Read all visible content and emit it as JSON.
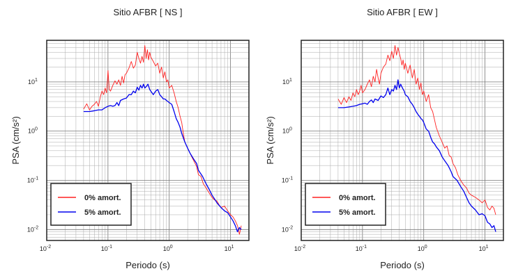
{
  "chart_data": [
    {
      "type": "line",
      "title": "Sitio AFBR [ NS ]",
      "xlabel": "Periodo (s)",
      "ylabel": "PSA (cm/s²)",
      "xscale": "log",
      "yscale": "log",
      "xlim": [
        0.01,
        20
      ],
      "ylim": [
        0.006,
        70
      ],
      "grid": true,
      "legend": "lower-left",
      "x_ticks": [
        {
          "value": 0.01,
          "base": "10",
          "exp": "-2"
        },
        {
          "value": 0.1,
          "base": "10",
          "exp": "-1"
        },
        {
          "value": 1,
          "base": "10",
          "exp": "0"
        },
        {
          "value": 10,
          "base": "10",
          "exp": "1"
        }
      ],
      "y_ticks": [
        {
          "value": 0.01,
          "base": "10",
          "exp": "-2"
        },
        {
          "value": 0.1,
          "base": "10",
          "exp": "-1"
        },
        {
          "value": 1,
          "base": "10",
          "exp": "0"
        },
        {
          "value": 10,
          "base": "10",
          "exp": "1"
        }
      ],
      "series": [
        {
          "name": "0% amort.",
          "color": "#ff2020",
          "x": [
            0.04,
            0.045,
            0.05,
            0.055,
            0.06,
            0.065,
            0.07,
            0.075,
            0.08,
            0.085,
            0.09,
            0.095,
            0.1,
            0.105,
            0.11,
            0.12,
            0.13,
            0.14,
            0.15,
            0.16,
            0.17,
            0.18,
            0.19,
            0.2,
            0.22,
            0.24,
            0.26,
            0.28,
            0.3,
            0.32,
            0.34,
            0.36,
            0.38,
            0.4,
            0.42,
            0.44,
            0.46,
            0.48,
            0.5,
            0.55,
            0.6,
            0.65,
            0.7,
            0.75,
            0.8,
            0.85,
            0.9,
            0.95,
            1.0,
            1.1,
            1.2,
            1.3,
            1.4,
            1.5,
            1.6,
            1.7,
            1.8,
            2.0,
            2.2,
            2.4,
            2.6,
            2.8,
            3.0,
            3.3,
            3.6,
            4.0,
            4.5,
            5.0,
            5.5,
            6.0,
            6.5,
            7.0,
            8.0,
            9.0,
            10.0,
            11.0,
            12.0,
            13.0,
            14.0,
            15.0
          ],
          "y": [
            2.8,
            3.6,
            2.7,
            3.2,
            3.5,
            4.0,
            3.2,
            5.0,
            6.5,
            5.5,
            7.5,
            6.0,
            17.0,
            7.0,
            6.5,
            8.5,
            10.5,
            9.0,
            11.0,
            8.5,
            13.0,
            9.5,
            14.0,
            15.0,
            19.0,
            26.0,
            19.0,
            22.0,
            40.0,
            30.0,
            24.0,
            33.0,
            25.0,
            55.0,
            30.0,
            45.0,
            28.0,
            40.0,
            32.0,
            26.0,
            21.0,
            24.0,
            15.0,
            20.0,
            12.0,
            16.0,
            10.0,
            11.0,
            7.5,
            8.5,
            6.0,
            4.0,
            3.0,
            2.0,
            1.5,
            0.9,
            0.6,
            0.45,
            0.35,
            0.28,
            0.23,
            0.19,
            0.13,
            0.12,
            0.085,
            0.07,
            0.055,
            0.045,
            0.04,
            0.038,
            0.032,
            0.028,
            0.03,
            0.024,
            0.02,
            0.018,
            0.015,
            0.012,
            0.008,
            0.012
          ]
        },
        {
          "name": "5% amort.",
          "color": "#0000ee",
          "x": [
            0.04,
            0.05,
            0.06,
            0.07,
            0.08,
            0.09,
            0.1,
            0.11,
            0.12,
            0.13,
            0.14,
            0.15,
            0.16,
            0.18,
            0.2,
            0.22,
            0.24,
            0.26,
            0.28,
            0.3,
            0.32,
            0.34,
            0.36,
            0.38,
            0.4,
            0.42,
            0.45,
            0.48,
            0.5,
            0.55,
            0.6,
            0.65,
            0.7,
            0.75,
            0.8,
            0.85,
            0.9,
            0.95,
            1.0,
            1.1,
            1.2,
            1.3,
            1.4,
            1.5,
            1.6,
            1.8,
            2.0,
            2.2,
            2.5,
            2.8,
            3.0,
            3.5,
            4.0,
            4.5,
            5.0,
            5.5,
            6.0,
            7.0,
            8.0,
            9.0,
            10.0,
            11.0,
            12.0,
            13.0,
            14.0,
            15.0
          ],
          "y": [
            2.5,
            2.5,
            2.6,
            2.7,
            2.7,
            3.0,
            3.2,
            3.3,
            3.2,
            3.3,
            3.8,
            3.3,
            4.2,
            4.5,
            4.7,
            5.5,
            5.5,
            6.5,
            6.0,
            7.8,
            6.8,
            8.5,
            7.5,
            9.0,
            7.5,
            8.0,
            9.0,
            7.0,
            6.5,
            5.5,
            6.5,
            7.0,
            5.5,
            5.0,
            4.5,
            4.5,
            4.2,
            4.0,
            3.8,
            3.5,
            2.5,
            1.8,
            1.5,
            1.2,
            0.9,
            0.6,
            0.45,
            0.35,
            0.27,
            0.22,
            0.16,
            0.12,
            0.085,
            0.065,
            0.05,
            0.042,
            0.035,
            0.028,
            0.024,
            0.022,
            0.018,
            0.015,
            0.012,
            0.009,
            0.011,
            0.01
          ]
        }
      ]
    },
    {
      "type": "line",
      "title": "Sitio AFBR [ EW ]",
      "xlabel": "Periodo (s)",
      "ylabel": "PSA (cm/s²)",
      "xscale": "log",
      "yscale": "log",
      "xlim": [
        0.01,
        20
      ],
      "ylim": [
        0.006,
        70
      ],
      "grid": true,
      "legend": "lower-left",
      "x_ticks": [
        {
          "value": 0.01,
          "base": "10",
          "exp": "-2"
        },
        {
          "value": 0.1,
          "base": "10",
          "exp": "-1"
        },
        {
          "value": 1,
          "base": "10",
          "exp": "0"
        },
        {
          "value": 10,
          "base": "10",
          "exp": "1"
        }
      ],
      "y_ticks": [
        {
          "value": 0.01,
          "base": "10",
          "exp": "-2"
        },
        {
          "value": 0.1,
          "base": "10",
          "exp": "-1"
        },
        {
          "value": 1,
          "base": "10",
          "exp": "0"
        },
        {
          "value": 10,
          "base": "10",
          "exp": "1"
        }
      ],
      "series": [
        {
          "name": "0% amort.",
          "color": "#ff2020",
          "x": [
            0.04,
            0.045,
            0.05,
            0.055,
            0.06,
            0.065,
            0.07,
            0.075,
            0.08,
            0.085,
            0.09,
            0.095,
            0.1,
            0.11,
            0.12,
            0.13,
            0.14,
            0.15,
            0.16,
            0.17,
            0.18,
            0.19,
            0.2,
            0.22,
            0.24,
            0.26,
            0.28,
            0.3,
            0.32,
            0.34,
            0.36,
            0.38,
            0.4,
            0.42,
            0.44,
            0.46,
            0.48,
            0.5,
            0.55,
            0.6,
            0.65,
            0.7,
            0.75,
            0.8,
            0.85,
            0.9,
            0.95,
            1.0,
            1.1,
            1.2,
            1.3,
            1.4,
            1.5,
            1.6,
            1.8,
            2.0,
            2.2,
            2.4,
            2.6,
            2.8,
            3.0,
            3.3,
            3.6,
            4.0,
            4.5,
            5.0,
            5.5,
            6.0,
            7.0,
            8.0,
            9.0,
            10.0,
            11.0,
            12.0,
            13.0,
            14.0,
            15.0
          ],
          "y": [
            4.5,
            3.5,
            4.8,
            3.8,
            5.0,
            4.2,
            6.0,
            5.0,
            7.0,
            5.5,
            6.5,
            8.5,
            6.0,
            7.0,
            9.0,
            11.0,
            8.0,
            13.0,
            10.0,
            18.0,
            12.0,
            9.0,
            15.0,
            20.0,
            23.0,
            35.0,
            27.0,
            42.0,
            30.0,
            55.0,
            35.0,
            50.0,
            38.0,
            30.0,
            22.0,
            28.0,
            18.0,
            24.0,
            15.0,
            22.0,
            12.0,
            18.0,
            9.0,
            12.0,
            7.0,
            9.5,
            5.5,
            6.5,
            4.0,
            5.5,
            3.0,
            2.5,
            1.7,
            1.2,
            0.8,
            0.6,
            0.45,
            0.5,
            0.32,
            0.3,
            0.22,
            0.18,
            0.13,
            0.1,
            0.08,
            0.07,
            0.055,
            0.05,
            0.045,
            0.04,
            0.035,
            0.04,
            0.028,
            0.025,
            0.03,
            0.027,
            0.02
          ]
        },
        {
          "name": "5% amort.",
          "color": "#0000ee",
          "x": [
            0.04,
            0.05,
            0.06,
            0.07,
            0.08,
            0.09,
            0.1,
            0.11,
            0.12,
            0.13,
            0.14,
            0.15,
            0.16,
            0.18,
            0.2,
            0.22,
            0.24,
            0.26,
            0.28,
            0.3,
            0.32,
            0.34,
            0.36,
            0.38,
            0.4,
            0.42,
            0.45,
            0.48,
            0.5,
            0.55,
            0.6,
            0.65,
            0.7,
            0.75,
            0.8,
            0.85,
            0.9,
            0.95,
            1.0,
            1.1,
            1.2,
            1.3,
            1.4,
            1.5,
            1.6,
            1.8,
            2.0,
            2.2,
            2.5,
            2.8,
            3.0,
            3.5,
            4.0,
            4.5,
            5.0,
            5.5,
            6.0,
            7.0,
            8.0,
            9.0,
            10.0,
            11.0,
            12.0,
            13.0,
            14.0,
            15.0
          ],
          "y": [
            3.0,
            3.0,
            3.1,
            3.2,
            3.3,
            3.5,
            3.6,
            3.7,
            3.5,
            4.0,
            4.3,
            3.8,
            4.5,
            4.2,
            5.2,
            4.8,
            5.5,
            7.5,
            5.5,
            7.0,
            6.5,
            8.5,
            7.0,
            11.0,
            7.5,
            9.0,
            7.5,
            6.5,
            5.5,
            5.0,
            4.0,
            3.5,
            3.0,
            2.5,
            2.2,
            2.0,
            1.8,
            1.7,
            1.5,
            1.1,
            1.0,
            0.75,
            0.6,
            0.55,
            0.48,
            0.4,
            0.3,
            0.25,
            0.2,
            0.15,
            0.12,
            0.1,
            0.075,
            0.06,
            0.045,
            0.035,
            0.03,
            0.025,
            0.02,
            0.021,
            0.019,
            0.014,
            0.013,
            0.011,
            0.012,
            0.009
          ]
        }
      ]
    }
  ]
}
